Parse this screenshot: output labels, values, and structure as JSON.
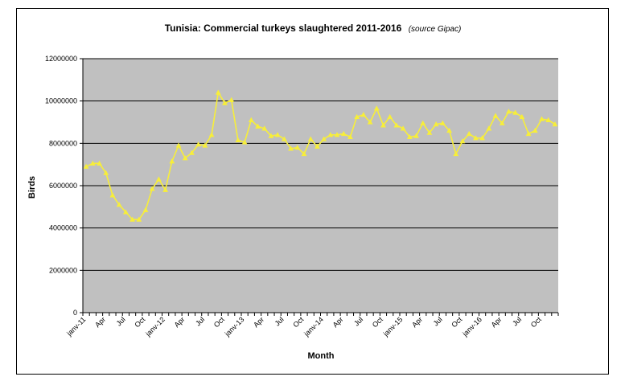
{
  "chart_data": {
    "type": "line",
    "title": "Tunisia: Commercial turkeys slaughtered 2011-2016",
    "subtitle": "(source Gipac)",
    "xlabel": "Month",
    "ylabel": "Birds",
    "ylim": [
      0,
      12000000
    ],
    "yticks": [
      "0",
      "2000000",
      "4000000",
      "6000000",
      "8000000",
      "10000000",
      "12000000"
    ],
    "xticks": [
      "janv-11",
      "Apr",
      "Jul",
      "Oct",
      "janv-12",
      "Apr",
      "Jul",
      "Oct",
      "janv-13",
      "Apr",
      "Jul",
      "Oct",
      "janv-14",
      "Apr",
      "Jul",
      "Oct",
      "janv-15",
      "Apr",
      "Jul",
      "Oct",
      "janv-16",
      "Apr",
      "Jul",
      "Oct"
    ],
    "grid": true,
    "colors": {
      "plot_bg": "#c0c0c0",
      "line": "#f7ee3a",
      "marker": "#f7ee3a"
    },
    "series": [
      {
        "values": [
          6900000,
          7050000,
          7050000,
          6600000,
          5550000,
          5100000,
          4750000,
          4400000,
          4400000,
          4850000,
          5850000,
          6300000,
          5800000,
          7150000,
          7900000,
          7300000,
          7550000,
          7950000,
          7900000,
          8400000,
          10400000,
          9900000,
          10050000,
          8150000,
          8050000,
          9100000,
          8800000,
          8700000,
          8350000,
          8400000,
          8200000,
          7750000,
          7800000,
          7500000,
          8200000,
          7850000,
          8200000,
          8400000,
          8400000,
          8450000,
          8300000,
          9250000,
          9350000,
          9000000,
          9650000,
          8850000,
          9250000,
          8850000,
          8700000,
          8300000,
          8350000,
          8950000,
          8500000,
          8900000,
          8950000,
          8600000,
          7500000,
          8100000,
          8450000,
          8250000,
          8250000,
          8700000,
          9300000,
          8950000,
          9500000,
          9450000,
          9250000,
          8450000,
          8600000,
          9150000,
          9100000,
          8900000
        ]
      }
    ]
  }
}
